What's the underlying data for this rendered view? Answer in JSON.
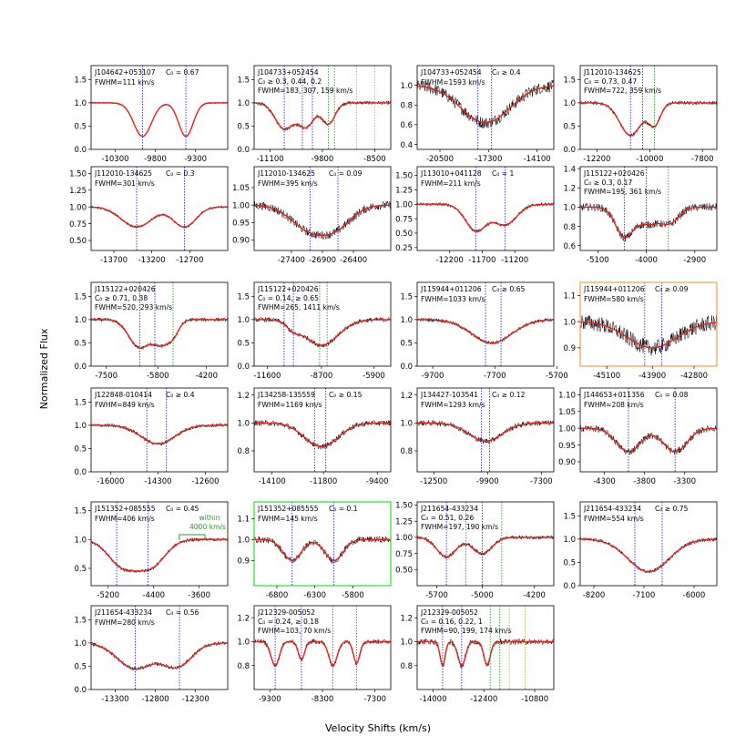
{
  "figure": {
    "ylabel": "Normalized Flux",
    "xlabel": "Velocity Shifts (km/s)"
  },
  "colors": {
    "model": "#e8201c",
    "spectrum": "#000000",
    "marker_blue": "#2b2bd6",
    "marker_green": "#2a9a2a",
    "marker_olive": "#b8b82a",
    "frame_orange": "#f5a040",
    "frame_green": "#2de02d"
  },
  "chart_data": [
    {
      "type": "line",
      "title": "J104642+053107",
      "c0": "C₀ = 0.67",
      "fwhm": "FWHM=111 km/s",
      "xlim": [
        -10600,
        -8900
      ],
      "ylim": [
        0.0,
        1.8
      ],
      "xticks": [
        -10300,
        -9800,
        -9300
      ],
      "yticks": [
        "0.0",
        "0.5",
        "1.0",
        "1.5"
      ],
      "troughs": [
        {
          "c": -9960,
          "w": 110,
          "d": 0.72
        },
        {
          "c": -9420,
          "w": 90,
          "d": 0.72
        }
      ],
      "markers": [
        {
          "v": -9960,
          "color": "blue"
        },
        {
          "v": -9420,
          "color": "blue"
        }
      ],
      "noise": 0.02
    },
    {
      "type": "line",
      "title": "J104733+052454",
      "c0": "C₀ ≥ 0.3, 0.44, 0.2",
      "fwhm": "FWHM=183, 307, 159 km/s",
      "xlim": [
        -11500,
        -8100
      ],
      "ylim": [
        0.0,
        1.8
      ],
      "xticks": [
        -11100,
        -9800,
        -8500
      ],
      "yticks": [
        "0.0",
        "0.5",
        "1.0",
        "1.5"
      ],
      "troughs": [
        {
          "c": -10750,
          "w": 230,
          "d": 0.55
        },
        {
          "c": -10200,
          "w": 200,
          "d": 0.5
        },
        {
          "c": -9650,
          "w": 160,
          "d": 0.45
        }
      ],
      "markers": [
        {
          "v": -10750,
          "color": "blue"
        },
        {
          "v": -10300,
          "color": "blue"
        },
        {
          "v": -10050,
          "color": "blue"
        },
        {
          "v": -9650,
          "color": "green"
        },
        {
          "v": -9500,
          "color": "green"
        },
        {
          "v": -8950,
          "color": "olive"
        },
        {
          "v": -8500,
          "color": "olive"
        }
      ],
      "noise": 0.04
    },
    {
      "type": "line",
      "title": "J104733+052454",
      "c0": "C₀ ≥ 0.4",
      "fwhm": "FWHM=1593 km/s",
      "xlim": [
        -22000,
        -13000
      ],
      "ylim": [
        0.35,
        1.2
      ],
      "xticks": [
        -20500,
        -17300,
        -14100
      ],
      "yticks": [
        "0.4",
        "0.6",
        "0.8",
        "1.0"
      ],
      "troughs": [
        {
          "c": -17500,
          "w": 1600,
          "d": 0.38
        }
      ],
      "markers": [
        {
          "v": -18000,
          "color": "blue"
        },
        {
          "v": -17100,
          "color": "blue"
        }
      ],
      "noise": 0.06
    },
    {
      "type": "line",
      "title": "J112010-134625",
      "c0": "C₀ = 0.73, 0.47",
      "fwhm": "FWHM=722, 359 km/s",
      "xlim": [
        -12900,
        -7200
      ],
      "ylim": [
        0.0,
        1.8
      ],
      "xticks": [
        -12200,
        -10000,
        -7800
      ],
      "yticks": [
        "0.0",
        "0.5",
        "1.0",
        "1.5"
      ],
      "troughs": [
        {
          "c": -10800,
          "w": 450,
          "d": 0.7
        },
        {
          "c": -9800,
          "w": 250,
          "d": 0.45
        }
      ],
      "markers": [
        {
          "v": -10800,
          "color": "blue"
        },
        {
          "v": -10300,
          "color": "blue"
        },
        {
          "v": -9800,
          "color": "green"
        }
      ],
      "noise": 0.04
    },
    {
      "type": "line",
      "title": "J112010-134625",
      "c0": "C₀ = 0.3",
      "fwhm": "FWHM=301 km/s",
      "xlim": [
        -14000,
        -12200
      ],
      "ylim": [
        0.35,
        1.6
      ],
      "xticks": [
        -13700,
        -13200,
        -12700
      ],
      "yticks": [
        "0.50",
        "0.75",
        "1.00",
        "1.25",
        "1.50"
      ],
      "troughs": [
        {
          "c": -13400,
          "w": 200,
          "d": 0.3
        },
        {
          "c": -12770,
          "w": 150,
          "d": 0.3
        }
      ],
      "markers": [
        {
          "v": -13400,
          "color": "blue"
        },
        {
          "v": -12770,
          "color": "blue"
        }
      ],
      "noise": 0.02
    },
    {
      "type": "line",
      "title": "J112010-134625",
      "c0": "C₀ = 0.09",
      "fwhm": "FWHM=395 km/s",
      "xlim": [
        -28000,
        -25800
      ],
      "ylim": [
        0.87,
        1.11
      ],
      "xticks": [
        -27400,
        -26900,
        -26400
      ],
      "yticks": [
        "0.90",
        "0.95",
        "1.00",
        "1.05"
      ],
      "troughs": [
        {
          "c": -27100,
          "w": 300,
          "d": 0.07
        },
        {
          "c": -26650,
          "w": 250,
          "d": 0.05
        }
      ],
      "markers": [
        {
          "v": -27100,
          "color": "blue"
        },
        {
          "v": -26650,
          "color": "blue"
        }
      ],
      "noise": 0.012
    },
    {
      "type": "line",
      "title": "J113010+041128",
      "c0": "C₀ = 1",
      "fwhm": "FWHM=211 km/s",
      "xlim": [
        -12700,
        -10600
      ],
      "ylim": [
        0.2,
        1.65
      ],
      "xticks": [
        -12200,
        -11700,
        -11200
      ],
      "yticks": [
        "0.25",
        "0.50",
        "0.75",
        "1.00",
        "1.25",
        "1.50"
      ],
      "troughs": [
        {
          "c": -11800,
          "w": 160,
          "d": 0.45
        },
        {
          "c": -11350,
          "w": 180,
          "d": 0.35
        }
      ],
      "markers": [
        {
          "v": -11800,
          "color": "blue"
        },
        {
          "v": -11350,
          "color": "blue"
        }
      ],
      "noise": 0.03
    },
    {
      "type": "line",
      "title": "J115122+020426",
      "c0": "C₀ ≥ 0.3, 0.17",
      "fwhm": "FWHM=195, 361 km/s",
      "xlim": [
        -5500,
        -2400
      ],
      "ylim": [
        0.55,
        1.42
      ],
      "xticks": [
        -5100,
        -4000,
        -2900
      ],
      "yticks": [
        "0.6",
        "0.8",
        "1.0",
        "1.2",
        "1.4"
      ],
      "troughs": [
        {
          "c": -4500,
          "w": 200,
          "d": 0.3
        },
        {
          "c": -3950,
          "w": 250,
          "d": 0.17
        },
        {
          "c": -3450,
          "w": 200,
          "d": 0.15
        }
      ],
      "markers": [
        {
          "v": -4500,
          "color": "blue"
        },
        {
          "v": -4000,
          "color": "blue"
        },
        {
          "v": -3500,
          "color": "green"
        }
      ],
      "noise": 0.04
    },
    {
      "type": "line",
      "title": "J115122+020426",
      "c0": "C₀ ≥ 0.71, 0.38",
      "fwhm": "FWHM=520, 293 km/s",
      "xlim": [
        -8000,
        -3500
      ],
      "ylim": [
        0.0,
        1.8
      ],
      "xticks": [
        -7500,
        -5800,
        -4200
      ],
      "yticks": [
        "0.0",
        "0.5",
        "1.0",
        "1.5"
      ],
      "troughs": [
        {
          "c": -6400,
          "w": 350,
          "d": 0.6
        },
        {
          "c": -5700,
          "w": 250,
          "d": 0.45
        },
        {
          "c": -5300,
          "w": 200,
          "d": 0.3
        }
      ],
      "markers": [
        {
          "v": -6400,
          "color": "blue"
        },
        {
          "v": -5900,
          "color": "blue"
        },
        {
          "v": -5300,
          "color": "green"
        }
      ],
      "noise": 0.04
    },
    {
      "type": "line",
      "title": "J115122+020426",
      "c0": "C₀ = 0.14, ≥ 0.65",
      "fwhm": "FWHM=265, 1411 km/s",
      "xlim": [
        -12300,
        -5000
      ],
      "ylim": [
        0.0,
        1.8
      ],
      "xticks": [
        -11600,
        -8700,
        -5900
      ],
      "yticks": [
        "0.0",
        "0.5",
        "1.0",
        "1.5"
      ],
      "troughs": [
        {
          "c": -10200,
          "w": 350,
          "d": 0.15
        },
        {
          "c": -8700,
          "w": 900,
          "d": 0.55
        }
      ],
      "markers": [
        {
          "v": -10700,
          "color": "blue"
        },
        {
          "v": -10200,
          "color": "blue"
        },
        {
          "v": -8800,
          "color": "green"
        },
        {
          "v": -8400,
          "color": "green"
        }
      ],
      "noise": 0.05
    },
    {
      "type": "line",
      "title": "J115944+011206",
      "c0": "C₀ ≥ 0.65",
      "fwhm": "FWHM=1033 km/s",
      "xlim": [
        -10200,
        -5800
      ],
      "ylim": [
        0.0,
        1.8
      ],
      "xticks": [
        -9700,
        -7700,
        -5700
      ],
      "yticks": [
        "0.0",
        "0.5",
        "1.0",
        "1.5"
      ],
      "troughs": [
        {
          "c": -7800,
          "w": 650,
          "d": 0.5
        }
      ],
      "markers": [
        {
          "v": -8000,
          "color": "blue"
        },
        {
          "v": -7500,
          "color": "blue"
        }
      ],
      "noise": 0.04
    },
    {
      "type": "line",
      "title": "J115944+011206",
      "c0": "C₀ ≥ 0.09",
      "fwhm": "FWHM=580 km/s",
      "xlim": [
        -45800,
        -42200
      ],
      "ylim": [
        0.83,
        1.15
      ],
      "xticks": [
        -45100,
        -43900,
        -42800
      ],
      "yticks": [
        "0.9",
        "1.0",
        "1.1"
      ],
      "troughs": [
        {
          "c": -43900,
          "w": 650,
          "d": 0.1
        }
      ],
      "markers": [
        {
          "v": -44100,
          "color": "blue"
        },
        {
          "v": -43650,
          "color": "blue"
        }
      ],
      "noise": 0.03
    },
    {
      "type": "line",
      "title": "J122848-010414",
      "c0": "C₀ ≥ 0.4",
      "fwhm": "FWHM=849 km/s",
      "xlim": [
        -16700,
        -11800
      ],
      "ylim": [
        0.0,
        1.8
      ],
      "xticks": [
        -16000,
        -14300,
        -12600
      ],
      "yticks": [
        "0.0",
        "0.5",
        "1.0",
        "1.5"
      ],
      "troughs": [
        {
          "c": -14300,
          "w": 600,
          "d": 0.4
        }
      ],
      "markers": [
        {
          "v": -14700,
          "color": "blue"
        },
        {
          "v": -14000,
          "color": "blue"
        }
      ],
      "noise": 0.04
    },
    {
      "type": "line",
      "title": "J134258-135559",
      "c0": "C₀ ≥ 0.15",
      "fwhm": "FWHM=1169 km/s",
      "xlim": [
        -14900,
        -8800
      ],
      "ylim": [
        0.65,
        1.25
      ],
      "xticks": [
        -14100,
        -11800,
        -9400
      ],
      "yticks": [
        "0.8",
        "1.0",
        "1.2"
      ],
      "troughs": [
        {
          "c": -11900,
          "w": 750,
          "d": 0.17
        }
      ],
      "markers": [
        {
          "v": -12200,
          "color": "blue"
        },
        {
          "v": -11700,
          "color": "blue"
        }
      ],
      "noise": 0.02
    },
    {
      "type": "line",
      "title": "J134427-103541",
      "c0": "C₀ ≥ 0.12",
      "fwhm": "FWHM=1293 km/s",
      "xlim": [
        -13300,
        -6700
      ],
      "ylim": [
        0.65,
        1.25
      ],
      "xticks": [
        -12500,
        -9900,
        -7300
      ],
      "yticks": [
        "0.8",
        "1.0",
        "1.2"
      ],
      "troughs": [
        {
          "c": -10000,
          "w": 800,
          "d": 0.13
        }
      ],
      "markers": [
        {
          "v": -10200,
          "color": "blue"
        },
        {
          "v": -9800,
          "color": "blue"
        }
      ],
      "noise": 0.02
    },
    {
      "type": "line",
      "title": "J144653+011356",
      "c0": "C₀ = 0.08",
      "fwhm": "FWHM=208 km/s",
      "xlim": [
        -4600,
        -2900
      ],
      "ylim": [
        0.87,
        1.12
      ],
      "xticks": [
        -4300,
        -3800,
        -3300
      ],
      "yticks": [
        "0.90",
        "0.95",
        "1.00",
        "1.05",
        "1.10"
      ],
      "troughs": [
        {
          "c": -4000,
          "w": 150,
          "d": 0.07
        },
        {
          "c": -3420,
          "w": 150,
          "d": 0.07
        }
      ],
      "markers": [
        {
          "v": -4000,
          "color": "blue"
        },
        {
          "v": -3420,
          "color": "blue"
        }
      ],
      "noise": 0.01
    },
    {
      "type": "line",
      "title": "J151352+085555",
      "c0": "C₀ = 0.45",
      "fwhm": "FWHM=406 km/s",
      "xlim": [
        -5500,
        -3100
      ],
      "ylim": [
        0.2,
        1.65
      ],
      "xticks": [
        -5200,
        -4400,
        -3600
      ],
      "yticks": [
        "0.5",
        "1.0",
        "1.5"
      ],
      "troughs": [
        {
          "c": -4950,
          "w": 250,
          "d": 0.45
        },
        {
          "c": -4450,
          "w": 250,
          "d": 0.45
        }
      ],
      "markers": [
        {
          "v": -5050,
          "color": "blue"
        },
        {
          "v": -4500,
          "color": "blue"
        }
      ],
      "noise": 0.03,
      "annotation": {
        "text1": "within",
        "text2": "4000 km/s"
      }
    },
    {
      "type": "line",
      "title": "J151352+085555",
      "c0": "C₀ = 0.1",
      "fwhm": "FWHM=145 km/s",
      "xlim": [
        -7100,
        -5300
      ],
      "ylim": [
        0.78,
        1.18
      ],
      "xticks": [
        -6800,
        -6300,
        -5800
      ],
      "yticks": [
        "0.9",
        "1.0",
        "1.1"
      ],
      "troughs": [
        {
          "c": -6600,
          "w": 120,
          "d": 0.1
        },
        {
          "c": -6050,
          "w": 120,
          "d": 0.1
        }
      ],
      "markers": [
        {
          "v": -6600,
          "color": "blue"
        },
        {
          "v": -6050,
          "color": "blue"
        }
      ],
      "noise": 0.015
    },
    {
      "type": "line",
      "title": "J211654-433234",
      "c0": "C₀ = 0.51, 0.26",
      "fwhm": "FWHM=197, 190 km/s",
      "xlim": [
        -6000,
        -3900
      ],
      "ylim": [
        0.25,
        1.55
      ],
      "xticks": [
        -5700,
        -5000,
        -4200
      ],
      "yticks": [
        "0.50",
        "0.75",
        "1.00",
        "1.25",
        "1.50"
      ],
      "troughs": [
        {
          "c": -5550,
          "w": 150,
          "d": 0.3
        },
        {
          "c": -5000,
          "w": 150,
          "d": 0.25
        }
      ],
      "markers": [
        {
          "v": -5550,
          "color": "blue"
        },
        {
          "v": -5000,
          "color": "blue"
        },
        {
          "v": -5250,
          "color": "green"
        },
        {
          "v": -4700,
          "color": "green"
        }
      ],
      "noise": 0.03
    },
    {
      "type": "line",
      "title": "J211654-433234",
      "c0": "C₀ ≥ 0.75",
      "fwhm": "FWHM=554 km/s",
      "xlim": [
        -8500,
        -5500
      ],
      "ylim": [
        0.0,
        1.8
      ],
      "xticks": [
        -8200,
        -7100,
        -6000
      ],
      "yticks": [
        "0.0",
        "0.5",
        "1.0",
        "1.5"
      ],
      "troughs": [
        {
          "c": -7000,
          "w": 450,
          "d": 0.7
        }
      ],
      "markers": [
        {
          "v": -7300,
          "color": "blue"
        },
        {
          "v": -6700,
          "color": "blue"
        }
      ],
      "noise": 0.04
    },
    {
      "type": "line",
      "title": "J211654-433234",
      "c0": "C₀ = 0.56",
      "fwhm": "FWHM=280 km/s",
      "xlim": [
        -13600,
        -11900
      ],
      "ylim": [
        0.0,
        1.8
      ],
      "xticks": [
        -13300,
        -12800,
        -12300
      ],
      "yticks": [
        "0.0",
        "0.5",
        "1.0",
        "1.5"
      ],
      "troughs": [
        {
          "c": -13050,
          "w": 220,
          "d": 0.55
        },
        {
          "c": -12530,
          "w": 180,
          "d": 0.5
        }
      ],
      "markers": [
        {
          "v": -13050,
          "color": "blue"
        },
        {
          "v": -12500,
          "color": "blue"
        }
      ],
      "noise": 0.04
    },
    {
      "type": "line",
      "title": "J212329-005052",
      "c0": "C₀ = 0.24, ≥ 0.18",
      "fwhm": "FWHM=103, 70 km/s",
      "xlim": [
        -9600,
        -7000
      ],
      "ylim": [
        0.6,
        1.3
      ],
      "xticks": [
        -9300,
        -8300,
        -7300
      ],
      "yticks": [
        "0.8",
        "1.0",
        "1.2"
      ],
      "troughs": [
        {
          "c": -9200,
          "w": 80,
          "d": 0.2
        },
        {
          "c": -8700,
          "w": 60,
          "d": 0.15
        },
        {
          "c": -8100,
          "w": 80,
          "d": 0.2
        },
        {
          "c": -7650,
          "w": 60,
          "d": 0.18
        }
      ],
      "markers": [
        {
          "v": -9200,
          "color": "blue"
        },
        {
          "v": -8700,
          "color": "blue"
        },
        {
          "v": -8100,
          "color": "green"
        },
        {
          "v": -7650,
          "color": "green"
        }
      ],
      "noise": 0.02
    },
    {
      "type": "line",
      "title": "J212329-005052",
      "c0": "C₀ = 0.16, 0.22, 1",
      "fwhm": "FWHM=90, 199, 174 km/s",
      "xlim": [
        -14500,
        -10200
      ],
      "ylim": [
        0.6,
        1.3
      ],
      "xticks": [
        -14000,
        -12400,
        -10800
      ],
      "yticks": [
        "0.8",
        "1.0",
        "1.2"
      ],
      "troughs": [
        {
          "c": -13700,
          "w": 80,
          "d": 0.2
        },
        {
          "c": -13100,
          "w": 120,
          "d": 0.2
        },
        {
          "c": -12300,
          "w": 100,
          "d": 0.2
        }
      ],
      "markers": [
        {
          "v": -13700,
          "color": "blue"
        },
        {
          "v": -13100,
          "color": "blue"
        },
        {
          "v": -12200,
          "color": "green"
        },
        {
          "v": -11900,
          "color": "green"
        },
        {
          "v": -11600,
          "color": "olive"
        },
        {
          "v": -11100,
          "color": "olive"
        }
      ],
      "noise": 0.025
    }
  ]
}
